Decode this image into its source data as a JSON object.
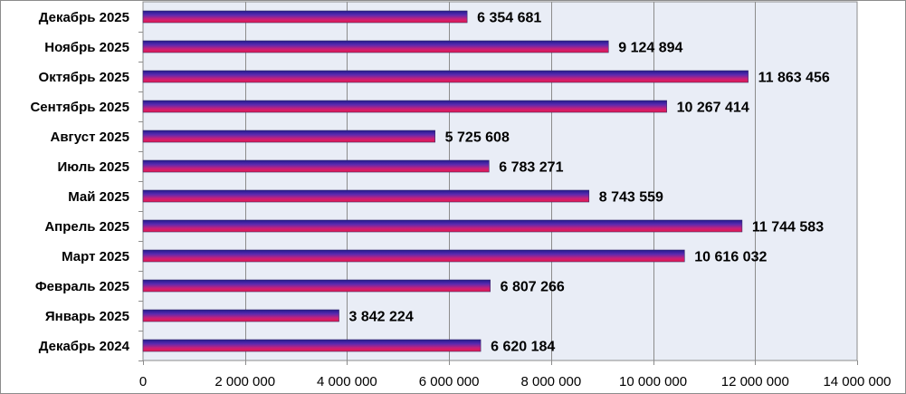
{
  "chart_data": {
    "type": "bar",
    "orientation": "horizontal",
    "title": "",
    "xlabel": "",
    "ylabel": "",
    "categories": [
      "Декабрь 2025",
      "Ноябрь 2025",
      "Октябрь 2025",
      "Сентябрь 2025",
      "Август 2025",
      "Июль 2025",
      "Май 2025",
      "Апрель 2025",
      "Март 2025",
      "Февраль 2025",
      "Январь 2025",
      "Декабрь 2024"
    ],
    "values": [
      6354681,
      9124894,
      11863456,
      10267414,
      5725608,
      6783271,
      8743559,
      11744583,
      10616032,
      6807266,
      3842224,
      6620184
    ],
    "value_labels": [
      "6 354 681",
      "9 124 894",
      "11 863 456",
      "10 267 414",
      "5 725 608",
      "6 783 271",
      "8 743 559",
      "11 744 583",
      "10 616 032",
      "6 807 266",
      "3 842 224",
      "6 620 184"
    ],
    "xlim": [
      0,
      14000000
    ],
    "ticks": [
      0,
      2000000,
      4000000,
      6000000,
      8000000,
      10000000,
      12000000,
      14000000
    ],
    "tick_labels": [
      "0",
      "2 000 000",
      "4 000 000",
      "6 000 000",
      "8 000 000",
      "10 000 000",
      "12 000 000",
      "14 000 000"
    ],
    "grid": true,
    "legend": "none",
    "colors": {
      "plot_background": "#e9edf6",
      "gridline": "#8c8c8c",
      "bar_gradient": [
        "#1f1a8c",
        "#5a2ab0",
        "#c8207a",
        "#e8184a"
      ],
      "frame": "#8c8c8c"
    }
  }
}
